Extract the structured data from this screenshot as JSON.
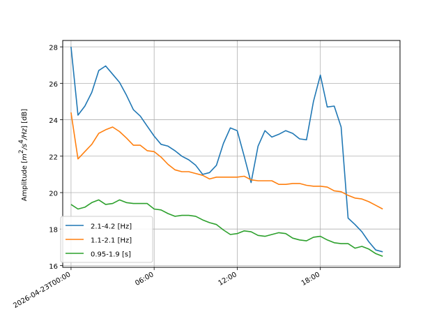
{
  "chart_data": {
    "type": "line",
    "title": "",
    "xlabel": "",
    "ylabel": "Amplitude [m²/s⁴/Hz] [dB]",
    "ylabel_parts": {
      "a": "Amplitude [",
      "m": "m",
      "e1": "2",
      "s": "/s",
      "e2": "4",
      "hz": "/Hz",
      "b": "] [dB]"
    },
    "x_unit": "hours since start of 2026-04-23",
    "xlim": [
      -0.6,
      23.75
    ],
    "ylim": [
      15.9,
      28.35
    ],
    "xticks": [
      {
        "value": 0,
        "label": "2026-04-23T00:00"
      },
      {
        "value": 6,
        "label": "06:00"
      },
      {
        "value": 12,
        "label": "12:00"
      },
      {
        "value": 18,
        "label": "18:00"
      }
    ],
    "yticks": [
      {
        "value": 16,
        "label": "16"
      },
      {
        "value": 18,
        "label": "18"
      },
      {
        "value": 20,
        "label": "20"
      },
      {
        "value": 22,
        "label": "22"
      },
      {
        "value": 24,
        "label": "24"
      },
      {
        "value": 26,
        "label": "26"
      },
      {
        "value": 28,
        "label": "28"
      }
    ],
    "grid": true,
    "legend_position": "lower-left",
    "x": [
      0,
      0.5,
      1,
      1.5,
      2,
      2.5,
      3,
      3.5,
      4,
      4.5,
      5,
      5.5,
      6,
      6.5,
      7,
      7.5,
      8,
      8.5,
      9,
      9.5,
      10,
      10.5,
      11,
      11.5,
      12,
      12.5,
      13,
      13.5,
      14,
      14.5,
      15,
      15.5,
      16,
      16.5,
      17,
      17.5,
      18,
      18.5,
      19,
      19.5,
      20,
      20.5,
      21,
      21.5,
      22,
      22.5
    ],
    "series": [
      {
        "name": "2.1-4.2 [Hz]",
        "color": "#1f77b4",
        "values": [
          28.0,
          24.25,
          24.75,
          25.5,
          26.7,
          26.95,
          26.5,
          26.05,
          25.35,
          24.55,
          24.2,
          23.65,
          23.1,
          22.65,
          22.55,
          22.3,
          22.0,
          21.8,
          21.5,
          21.0,
          21.1,
          21.5,
          22.7,
          23.55,
          23.4,
          22.0,
          20.55,
          22.55,
          23.4,
          23.05,
          23.2,
          23.4,
          23.25,
          22.95,
          22.9,
          25.0,
          26.45,
          24.7,
          24.75,
          23.6,
          18.6,
          18.25,
          17.85,
          17.3,
          16.85,
          16.75
        ]
      },
      {
        "name": "1.1-2.1 [Hz]",
        "color": "#ff7f0e",
        "values": [
          24.4,
          21.85,
          22.25,
          22.65,
          23.25,
          23.45,
          23.6,
          23.35,
          23.0,
          22.6,
          22.6,
          22.3,
          22.25,
          21.95,
          21.55,
          21.25,
          21.15,
          21.15,
          21.05,
          20.95,
          20.75,
          20.85,
          20.85,
          20.85,
          20.85,
          20.9,
          20.7,
          20.65,
          20.65,
          20.65,
          20.45,
          20.45,
          20.5,
          20.5,
          20.4,
          20.35,
          20.35,
          20.3,
          20.1,
          20.05,
          19.85,
          19.7,
          19.65,
          19.5,
          19.3,
          19.1
        ]
      },
      {
        "name": "0.95-1.9 [s]",
        "color": "#2ca02c",
        "values": [
          19.35,
          19.1,
          19.2,
          19.45,
          19.6,
          19.35,
          19.4,
          19.6,
          19.45,
          19.4,
          19.4,
          19.4,
          19.1,
          19.05,
          18.85,
          18.7,
          18.75,
          18.75,
          18.7,
          18.5,
          18.35,
          18.25,
          17.95,
          17.7,
          17.75,
          17.9,
          17.85,
          17.65,
          17.6,
          17.7,
          17.8,
          17.75,
          17.5,
          17.4,
          17.35,
          17.55,
          17.6,
          17.4,
          17.25,
          17.2,
          17.2,
          16.95,
          17.05,
          16.9,
          16.65,
          16.5
        ]
      }
    ]
  }
}
